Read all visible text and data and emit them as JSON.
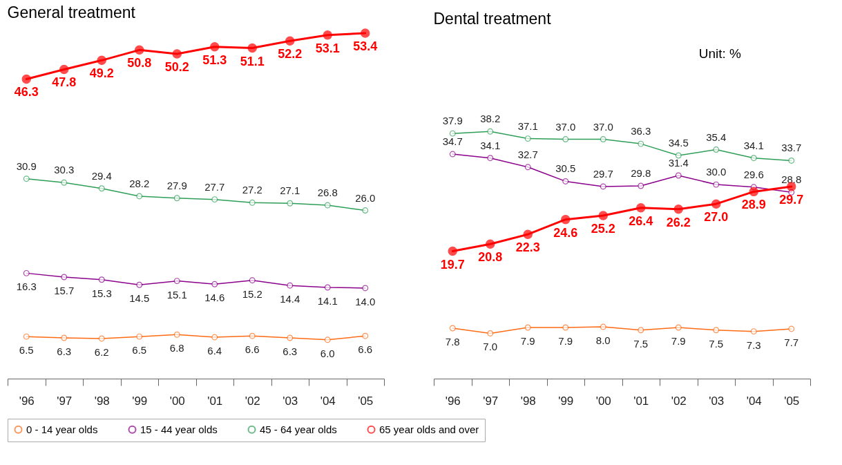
{
  "chart_data": [
    {
      "type": "line",
      "title": "General treatment",
      "categories": [
        "'96",
        "'97",
        "'98",
        "'99",
        "'00",
        "'01",
        "'02",
        "'03",
        "'04",
        "'05"
      ],
      "marker": "circle",
      "legend": "bottom",
      "series": [
        {
          "name": "0 - 14 year olds",
          "color": "#ff6a13",
          "values": [
            6.5,
            6.3,
            6.2,
            6.5,
            6.8,
            6.4,
            6.6,
            6.3,
            6.0,
            6.6
          ],
          "value_labels": [
            "6.5",
            "6.3",
            "6.2",
            "6.5",
            "6.8",
            "6.4",
            "6.6",
            "6.3",
            "6.0",
            "6.6"
          ]
        },
        {
          "name": "15 - 44 year olds",
          "color": "#8b008b",
          "values": [
            16.3,
            15.7,
            15.3,
            14.5,
            15.1,
            14.6,
            15.2,
            14.4,
            14.1,
            14.0
          ],
          "value_labels": [
            "16.3",
            "15.7",
            "15.3",
            "14.5",
            "15.1",
            "14.6",
            "15.2",
            "14.4",
            "14.1",
            "14.0"
          ]
        },
        {
          "name": "45 - 64 year olds",
          "color": "#2e9e57",
          "values": [
            30.9,
            30.3,
            29.4,
            28.2,
            27.9,
            27.7,
            27.2,
            27.1,
            26.8,
            26.0
          ],
          "value_labels": [
            "30.9",
            "30.3",
            "29.4",
            "28.2",
            "27.9",
            "27.7",
            "27.2",
            "27.1",
            "26.8",
            "26.0"
          ]
        },
        {
          "name": "65 year olds and over",
          "color": "#ff0000",
          "values": [
            46.3,
            47.8,
            49.2,
            50.8,
            50.2,
            51.3,
            51.1,
            52.2,
            53.1,
            53.4
          ],
          "value_labels": [
            "46.3",
            "47.8",
            "49.2",
            "50.8",
            "50.2",
            "51.3",
            "51.1",
            "52.2",
            "53.1",
            "53.4"
          ]
        }
      ]
    },
    {
      "type": "line",
      "title": "Dental treatment",
      "annotations": [
        "Unit: %"
      ],
      "categories": [
        "'96",
        "'97",
        "'98",
        "'99",
        "'00",
        "'01",
        "'02",
        "'03",
        "'04",
        "'05"
      ],
      "marker": "circle",
      "legend": "bottom",
      "series": [
        {
          "name": "0 - 14 year olds",
          "color": "#ff6a13",
          "values": [
            7.8,
            7.0,
            7.9,
            7.9,
            8.0,
            7.5,
            7.9,
            7.5,
            7.3,
            7.7
          ],
          "value_labels": [
            "7.8",
            "7.0",
            "7.9",
            "7.9",
            "8.0",
            "7.5",
            "7.9",
            "7.5",
            "7.3",
            "7.7"
          ]
        },
        {
          "name": "15 - 44 year olds",
          "color": "#8b008b",
          "values": [
            34.7,
            34.1,
            32.7,
            30.5,
            29.7,
            29.8,
            31.4,
            30.0,
            29.6,
            28.8
          ],
          "value_labels": [
            "34.7",
            "34.1",
            "32.7",
            "30.5",
            "29.7",
            "29.8",
            "31.4",
            "30.0",
            "29.6",
            "28.8"
          ]
        },
        {
          "name": "45 - 64 year olds",
          "color": "#2e9e57",
          "values": [
            37.9,
            38.2,
            37.1,
            37.0,
            37.0,
            36.3,
            34.5,
            35.4,
            34.1,
            33.7
          ],
          "value_labels": [
            "37.9",
            "38.2",
            "37.1",
            "37.0",
            "37.0",
            "36.3",
            "34.5",
            "35.4",
            "34.1",
            "33.7"
          ]
        },
        {
          "name": "65 year olds and over",
          "color": "#ff0000",
          "values": [
            19.7,
            20.8,
            22.3,
            24.6,
            25.2,
            26.4,
            26.2,
            27.0,
            28.9,
            29.7
          ],
          "value_labels": [
            "19.7",
            "20.8",
            "22.3",
            "24.6",
            "25.2",
            "26.4",
            "26.2",
            "27.0",
            "28.9",
            "29.7"
          ]
        }
      ]
    }
  ]
}
